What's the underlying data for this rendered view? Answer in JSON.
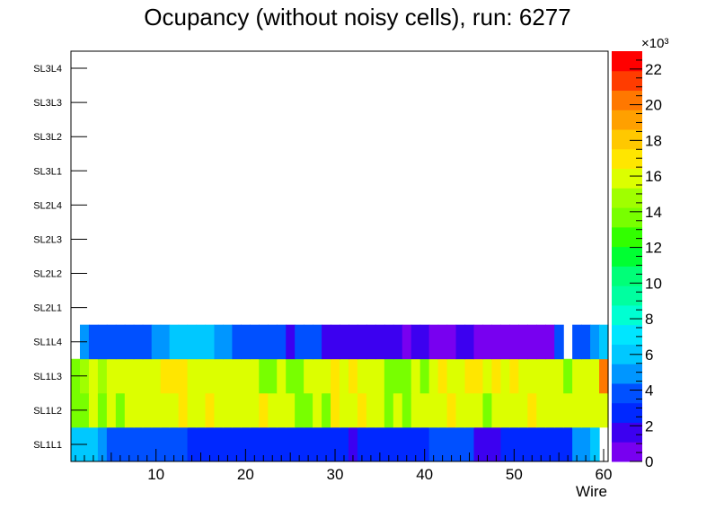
{
  "chart_data": {
    "type": "heatmap",
    "title": "Ocupancy (without noisy cells), run: 6277",
    "xlabel": "Wire",
    "ylabel": "",
    "xlim": [
      0.5,
      60.5
    ],
    "x_ticks": [
      10,
      20,
      30,
      40,
      50,
      60
    ],
    "y_categories": [
      "SL1L1",
      "SL1L2",
      "SL1L3",
      "SL1L4",
      "SL2L1",
      "SL2L2",
      "SL2L3",
      "SL2L4",
      "SL3L1",
      "SL3L2",
      "SL3L3",
      "SL3L4"
    ],
    "z_range": [
      0,
      23000
    ],
    "z_exponent_label": "×10³",
    "z_ticks": [
      "0",
      "2",
      "4",
      "6",
      "8",
      "10",
      "12",
      "14",
      "16",
      "18",
      "20",
      "22"
    ],
    "z_tick_values": [
      0,
      2,
      4,
      6,
      8,
      10,
      12,
      14,
      16,
      18,
      20,
      22
    ],
    "palette": [
      "#7800f0",
      "#3c00f0",
      "#0028ff",
      "#0050ff",
      "#0096ff",
      "#00c8ff",
      "#00e6ff",
      "#00ffd2",
      "#00ffa0",
      "#00ff78",
      "#00ff32",
      "#32ff00",
      "#78ff00",
      "#a0ff00",
      "#dcff00",
      "#ffe600",
      "#ffc800",
      "#ffa000",
      "#ff7800",
      "#ff3c00",
      "#ff0000"
    ],
    "z_grid": [
      [
        6.5,
        6.5,
        6.5,
        4.5,
        3.5,
        3.5,
        3.5,
        3.5,
        3.5,
        3.5,
        3.5,
        3.5,
        3.5,
        2.5,
        2.5,
        2.5,
        2.5,
        2.5,
        2.5,
        2.5,
        2.5,
        2.5,
        2.5,
        2.5,
        2.5,
        2.5,
        2.5,
        2.5,
        2.5,
        2.5,
        2.5,
        1.5,
        2.5,
        2.5,
        2.5,
        2.5,
        2.5,
        2.5,
        2.5,
        2.5,
        3.5,
        3.5,
        3.5,
        3.5,
        3.5,
        1.5,
        1.5,
        1.5,
        2.5,
        2.5,
        2.5,
        2.5,
        2.5,
        2.5,
        2.5,
        2.5,
        4.5,
        4.5,
        6.5,
        null
      ],
      [
        13.5,
        13.5,
        15.5,
        13.5,
        15.5,
        13.5,
        15.5,
        15.5,
        15.5,
        15.5,
        15.5,
        15.5,
        17.5,
        15.5,
        15.5,
        17.5,
        15.5,
        15.5,
        15.5,
        15.5,
        15.5,
        17.5,
        15.5,
        15.5,
        15.5,
        13.5,
        13.5,
        15.5,
        13.5,
        17.5,
        15.5,
        15.5,
        17.5,
        15.5,
        15.5,
        13.5,
        15.5,
        13.5,
        15.5,
        15.5,
        15.5,
        15.5,
        17.5,
        15.5,
        15.5,
        15.5,
        13.5,
        15.5,
        15.5,
        15.5,
        15.5,
        17.5,
        15.5,
        15.5,
        15.5,
        15.5,
        15.5,
        15.5,
        15.5,
        15.5
      ],
      [
        13.5,
        14.5,
        15.5,
        14.5,
        15.5,
        15.5,
        15.5,
        15.5,
        15.5,
        15.5,
        17.5,
        17.5,
        17.5,
        15.5,
        15.5,
        15.5,
        15.5,
        15.5,
        15.5,
        15.5,
        15.5,
        13.5,
        13.5,
        15.5,
        13.5,
        13.5,
        15.5,
        15.5,
        15.5,
        17.5,
        15.5,
        17.5,
        15.5,
        15.5,
        15.5,
        13.5,
        13.5,
        13.5,
        15.5,
        13.5,
        15.5,
        17.5,
        15.5,
        15.5,
        17.5,
        17.5,
        15.5,
        17.5,
        15.5,
        17.5,
        15.5,
        15.5,
        15.5,
        15.5,
        15.5,
        13.5,
        15.5,
        15.5,
        15.5,
        20.5
      ],
      [
        null,
        4.5,
        3.5,
        3.5,
        3.5,
        3.5,
        3.5,
        3.5,
        3.5,
        4.5,
        4.5,
        6.5,
        6.5,
        6.5,
        6.5,
        6.5,
        4.5,
        4.5,
        3.5,
        3.5,
        3.5,
        3.5,
        3.5,
        3.5,
        1.5,
        3.5,
        3.5,
        3.5,
        1.5,
        1.5,
        1.5,
        1.5,
        1.5,
        1.5,
        1.5,
        1.5,
        1.5,
        0.5,
        1.5,
        1.5,
        0.5,
        0.5,
        0.5,
        1.5,
        1.5,
        0.5,
        0.5,
        0.5,
        0.5,
        0.5,
        0.5,
        0.5,
        0.5,
        0.5,
        3.5,
        null,
        3.5,
        3.5,
        4.5,
        6.5
      ],
      [],
      [],
      [],
      [],
      [],
      [],
      [],
      []
    ]
  }
}
